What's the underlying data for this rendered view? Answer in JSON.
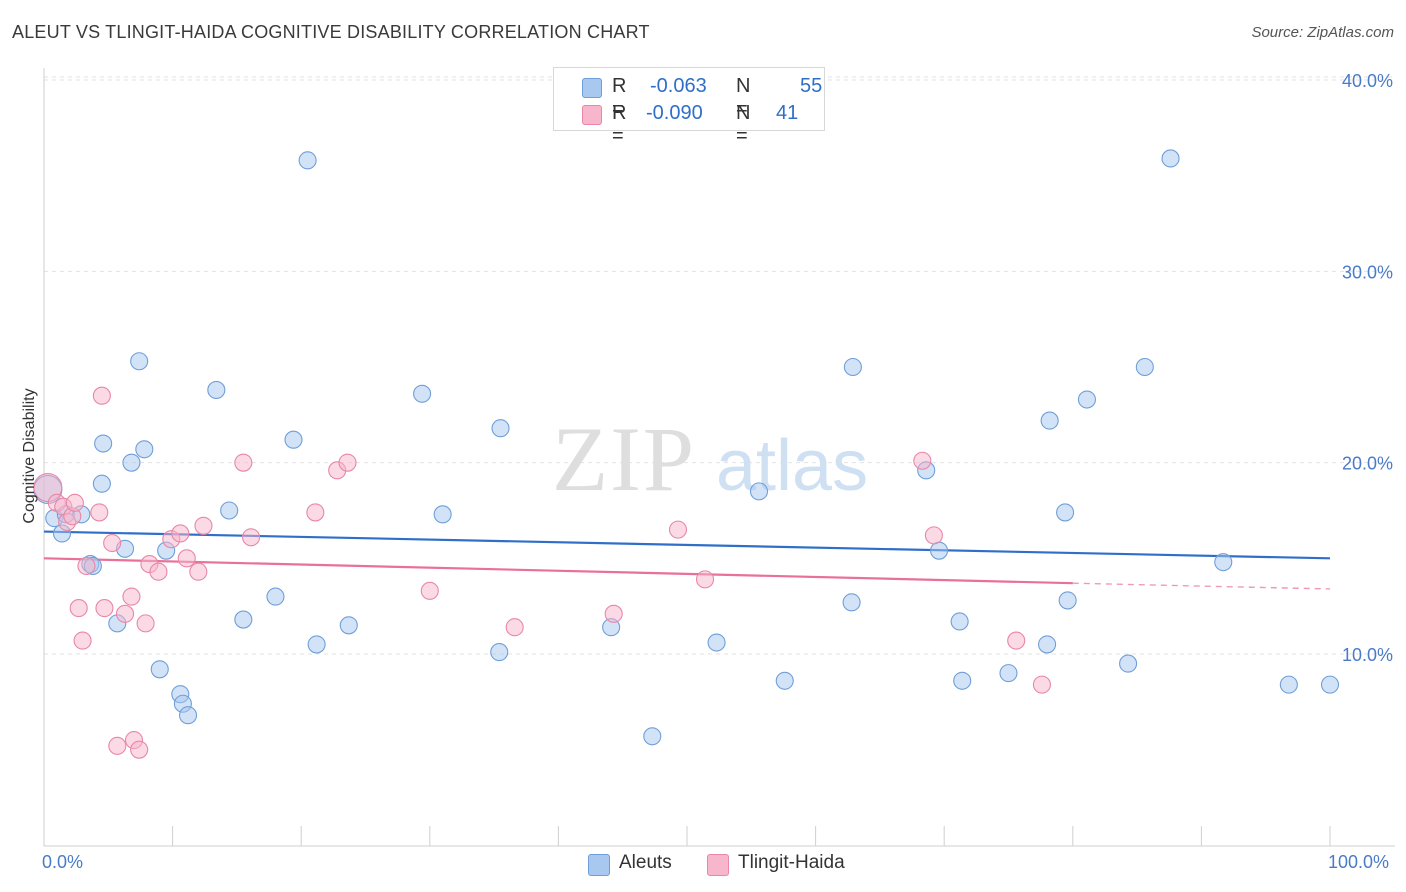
{
  "title": "ALEUT VS TLINGIT-HAIDA COGNITIVE DISABILITY CORRELATION CHART",
  "source": "Source: ZipAtlas.com",
  "watermark": {
    "zip": "ZIP",
    "atlas": "atlas"
  },
  "legend": {
    "r_label": "R =",
    "n_label": "N =",
    "rows": [
      {
        "r": "-0.063",
        "n": "55",
        "color": "#a8c8f0",
        "border": "#6f9fd8"
      },
      {
        "r": "-0.090",
        "n": "41",
        "color": "#f7b6cc",
        "border": "#e887a8"
      }
    ]
  },
  "bottom_legend": [
    {
      "label": "Aleuts",
      "color": "#a8c8f0",
      "border": "#6f9fd8"
    },
    {
      "label": "Tlingit-Haida",
      "color": "#f7b6cc",
      "border": "#e887a8"
    }
  ],
  "chart_data": {
    "type": "scatter",
    "title": "ALEUT VS TLINGIT-HAIDA COGNITIVE DISABILITY CORRELATION CHART",
    "xlabel": "",
    "ylabel": "Cognitive Disability",
    "xlim": [
      0,
      100
    ],
    "ylim": [
      0,
      42
    ],
    "x_tick_labels": [
      "0.0%",
      "100.0%"
    ],
    "y_ticks": [
      10,
      20,
      30,
      40
    ],
    "y_tick_labels": [
      "10.0%",
      "20.0%",
      "30.0%",
      "40.0%"
    ],
    "series": [
      {
        "name": "Aleuts",
        "color": "#a8c8f0",
        "stroke": "#6f9fd8",
        "trend": {
          "x0": 0,
          "y0": 16.4,
          "x1": 100,
          "y1": 15.0,
          "color": "#2f6fc9"
        },
        "points": [
          [
            0.3,
            18.6
          ],
          [
            0.8,
            17.1
          ],
          [
            1.4,
            16.3
          ],
          [
            1.7,
            17.3
          ],
          [
            2.9,
            17.3
          ],
          [
            3.6,
            14.7
          ],
          [
            3.8,
            14.6
          ],
          [
            4.5,
            18.9
          ],
          [
            4.6,
            21.0
          ],
          [
            5.7,
            11.6
          ],
          [
            6.3,
            15.5
          ],
          [
            6.8,
            20.0
          ],
          [
            7.4,
            25.3
          ],
          [
            7.8,
            20.7
          ],
          [
            9.0,
            9.2
          ],
          [
            9.5,
            15.4
          ],
          [
            10.6,
            7.9
          ],
          [
            10.8,
            7.4
          ],
          [
            11.2,
            6.8
          ],
          [
            13.4,
            23.8
          ],
          [
            14.4,
            17.5
          ],
          [
            15.5,
            11.8
          ],
          [
            18.0,
            13.0
          ],
          [
            19.4,
            21.2
          ],
          [
            20.5,
            35.8
          ],
          [
            21.2,
            10.5
          ],
          [
            23.7,
            11.5
          ],
          [
            29.4,
            23.6
          ],
          [
            31.0,
            17.3
          ],
          [
            35.4,
            10.1
          ],
          [
            35.5,
            21.8
          ],
          [
            44.1,
            11.4
          ],
          [
            47.3,
            5.7
          ],
          [
            52.3,
            10.6
          ],
          [
            55.6,
            18.5
          ],
          [
            57.6,
            8.6
          ],
          [
            62.8,
            12.7
          ],
          [
            62.9,
            25.0
          ],
          [
            68.6,
            19.6
          ],
          [
            69.6,
            15.4
          ],
          [
            71.2,
            11.7
          ],
          [
            71.4,
            8.6
          ],
          [
            75.0,
            9.0
          ],
          [
            78.0,
            10.5
          ],
          [
            78.2,
            22.2
          ],
          [
            79.4,
            17.4
          ],
          [
            79.6,
            12.8
          ],
          [
            81.1,
            23.3
          ],
          [
            84.3,
            9.5
          ],
          [
            85.6,
            25.0
          ],
          [
            87.6,
            35.9
          ],
          [
            91.7,
            14.8
          ],
          [
            96.8,
            8.4
          ],
          [
            100.0,
            8.4
          ]
        ]
      },
      {
        "name": "Tlingit-Haida",
        "color": "#f7b6cc",
        "stroke": "#e887a8",
        "trend": {
          "x0": 0,
          "y0": 15.0,
          "x1": 80,
          "y1": 13.7,
          "dash_x1": 100,
          "dash_y1": 13.4,
          "color": "#e87099"
        },
        "points": [
          [
            0.3,
            18.7
          ],
          [
            1.0,
            17.9
          ],
          [
            1.5,
            17.7
          ],
          [
            1.8,
            16.9
          ],
          [
            2.2,
            17.2
          ],
          [
            2.4,
            17.9
          ],
          [
            2.7,
            12.4
          ],
          [
            3.0,
            10.7
          ],
          [
            3.3,
            14.6
          ],
          [
            4.3,
            17.4
          ],
          [
            4.5,
            23.5
          ],
          [
            4.7,
            12.4
          ],
          [
            5.3,
            15.8
          ],
          [
            5.7,
            5.2
          ],
          [
            6.3,
            12.1
          ],
          [
            6.8,
            13.0
          ],
          [
            7.0,
            5.5
          ],
          [
            7.4,
            5.0
          ],
          [
            7.9,
            11.6
          ],
          [
            8.2,
            14.7
          ],
          [
            8.9,
            14.3
          ],
          [
            9.9,
            16.0
          ],
          [
            10.6,
            16.3
          ],
          [
            11.1,
            15.0
          ],
          [
            12.0,
            14.3
          ],
          [
            12.4,
            16.7
          ],
          [
            15.5,
            20.0
          ],
          [
            16.1,
            16.1
          ],
          [
            21.1,
            17.4
          ],
          [
            22.8,
            19.6
          ],
          [
            23.6,
            20.0
          ],
          [
            30.0,
            13.3
          ],
          [
            36.6,
            11.4
          ],
          [
            44.3,
            12.1
          ],
          [
            49.3,
            16.5
          ],
          [
            51.4,
            13.9
          ],
          [
            68.3,
            20.1
          ],
          [
            69.2,
            16.2
          ],
          [
            75.6,
            10.7
          ],
          [
            77.6,
            8.4
          ]
        ]
      }
    ]
  }
}
